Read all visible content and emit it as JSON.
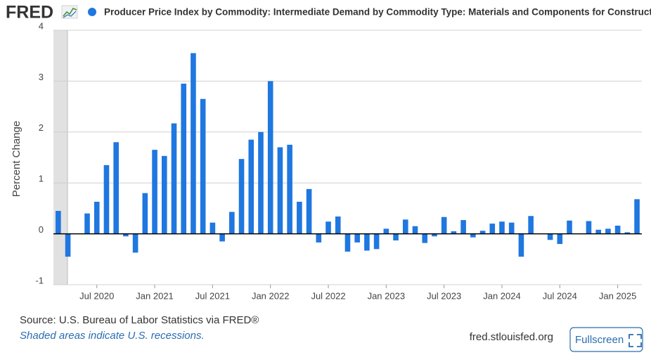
{
  "header": {
    "logo": "FRED"
  },
  "chart_data": {
    "type": "bar",
    "title": "Producer Price Index by Commodity: Intermediate Demand by Commodity Type: Materials and Components for Construction",
    "y_label": "Percent Change",
    "color": "#1f77e0",
    "categories": [
      null,
      null,
      null,
      null,
      "Jul 2020",
      null,
      null,
      null,
      null,
      null,
      "Jan 2021",
      null,
      null,
      null,
      null,
      null,
      "Jul 2021",
      null,
      null,
      null,
      null,
      null,
      "Jan 2022",
      null,
      null,
      null,
      null,
      null,
      "Jul 2022",
      null,
      null,
      null,
      null,
      null,
      "Jan 2023",
      null,
      null,
      null,
      null,
      null,
      "Jul 2023",
      null,
      null,
      null,
      null,
      null,
      "Jan 2024",
      null,
      null,
      null,
      null,
      null,
      "Jul 2024",
      null,
      null,
      null,
      null,
      null,
      "Jan 2025",
      null,
      null
    ],
    "values": [
      0.45,
      -0.45,
      0,
      0.4,
      0.63,
      1.35,
      1.8,
      -0.05,
      -0.37,
      0.8,
      1.65,
      1.53,
      2.17,
      2.95,
      3.55,
      2.65,
      0.22,
      -0.15,
      0.43,
      1.47,
      1.85,
      2.0,
      3.0,
      1.7,
      1.75,
      0.63,
      0.88,
      -0.17,
      0.24,
      0.34,
      -0.35,
      -0.17,
      -0.33,
      -0.3,
      0.1,
      -0.13,
      0.28,
      0.15,
      -0.18,
      -0.05,
      0.33,
      0.05,
      0.27,
      -0.07,
      0.06,
      0.2,
      0.24,
      0.22,
      -0.45,
      0.35,
      0,
      -0.12,
      -0.2,
      0.26,
      0,
      0.25,
      0.08,
      0.1,
      0.16,
      0.03,
      0.68
    ],
    "ylim": [
      -1,
      4
    ],
    "yticks": [
      -1,
      0,
      1,
      2,
      3,
      4
    ],
    "grid": true
  },
  "footer": {
    "source": "Source: U.S. Bureau of Labor Statistics via FRED®",
    "note": "Shaded areas indicate U.S. recessions.",
    "site": "fred.stlouisfed.org",
    "button": "Fullscreen"
  }
}
